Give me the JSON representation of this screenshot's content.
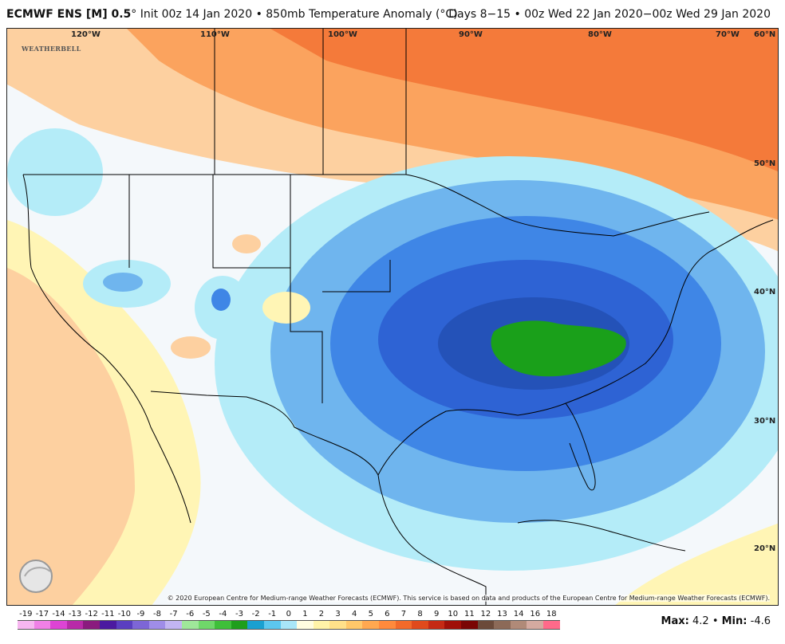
{
  "header": {
    "model": "ECMWF ENS [M] 0.5",
    "degree": "°",
    "init_info": " Init 00z 14 Jan 2020 • 850mb Temperature Anomaly (°C)",
    "valid_info": "Days 8−15 • 00z Wed 22 Jan 2020−00z Wed 29 Jan 2020"
  },
  "map": {
    "longitude_labels": [
      "120°W",
      "110°W",
      "100°W",
      "90°W",
      "80°W",
      "70°W"
    ],
    "latitude_labels": [
      "60°N",
      "50°N",
      "40°N",
      "30°N",
      "20°N"
    ],
    "copyright": "© 2020 European Centre for Medium-range Weather Forecasts (ECMWF). This service is based on data and products of the European Centre for Medium-range Weather Forecasts (ECMWF).",
    "logo_text": "WEATHERBELL"
  },
  "colorbar": {
    "labels": [
      "-19",
      "-17",
      "-14",
      "-13",
      "-12",
      "-11",
      "-10",
      "-9",
      "-8",
      "-7",
      "-6",
      "-5",
      "-4",
      "-3",
      "-2",
      "-1",
      "0",
      "1",
      "2",
      "3",
      "4",
      "5",
      "6",
      "7",
      "8",
      "9",
      "10",
      "11",
      "12",
      "13",
      "14",
      "16",
      "18"
    ],
    "colors": [
      "#f7b6f0",
      "#f080e6",
      "#dd44d4",
      "#b82aa8",
      "#8a1b7e",
      "#4b1aa0",
      "#5a3fc0",
      "#7d66d6",
      "#9f8de8",
      "#c2b5f2",
      "#9fe79a",
      "#6fd86a",
      "#3fbf3a",
      "#1f9e1c",
      "#1aa0d0",
      "#5cc7ee",
      "#a8e6f8",
      "#fffce0",
      "#fff3a8",
      "#ffe18a",
      "#ffc86a",
      "#ffa850",
      "#ff8a3c",
      "#f26a2a",
      "#e04a1c",
      "#c52a14",
      "#a01008",
      "#7a0604",
      "#6b4a3a",
      "#8c6a58",
      "#b08a78",
      "#d4aaa0",
      "#ff6a8a"
    ]
  },
  "stats": {
    "max_label": "Max:",
    "max_value": "4.2",
    "min_label": "Min:",
    "min_value": "-4.6",
    "sep": "•"
  },
  "colors": {
    "warm_dark": "#f47a3a",
    "warm": "#fba35e",
    "warm_light": "#fdd0a0",
    "neutral_warm": "#fff5b5",
    "neutral": "#f4f8fb",
    "cold_light": "#b4ecf8",
    "cold": "#6fb5ee",
    "cold_mid": "#3f86e6",
    "cold_deep": "#2e63d4",
    "cold_core": "#2452b8",
    "anomaly_min": "#1aa01a"
  }
}
